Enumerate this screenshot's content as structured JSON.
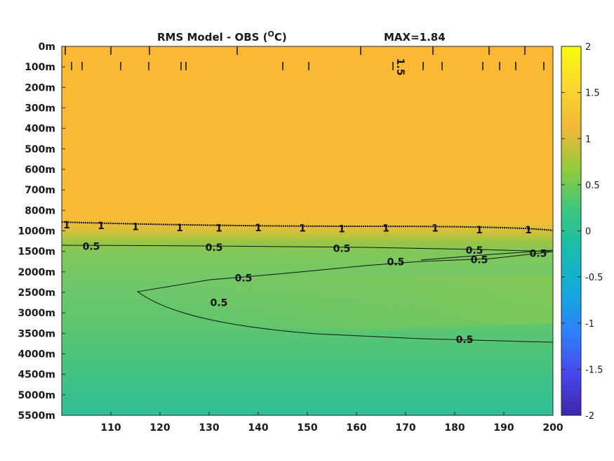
{
  "chart_data": {
    "type": "heatmap",
    "title_left": "RMS Model - OBS (",
    "title_sup": "O",
    "title_unit": "C)",
    "title_right": "MAX=1.84",
    "x_ticks": [
      110,
      120,
      130,
      140,
      150,
      160,
      170,
      180,
      190,
      200
    ],
    "xlim": [
      100,
      200
    ],
    "y_ticks": [
      "0m",
      "100m",
      "200m",
      "300m",
      "400m",
      "500m",
      "600m",
      "700m",
      "800m",
      "1000m",
      "1500m",
      "2000m",
      "2500m",
      "3000m",
      "3500m",
      "4000m",
      "4500m",
      "5000m",
      "5500m"
    ],
    "colorbar": {
      "ticks": [
        "2",
        "1.5",
        "1",
        "0.5",
        "0",
        "-0.5",
        "-1",
        "-1.5",
        "-2"
      ],
      "range": [
        -2,
        2
      ],
      "colors": [
        "#3e26a8",
        "#4746eb",
        "#2f7ffa",
        "#15a9dd",
        "#16bcb0",
        "#3bc67c",
        "#90cb3e",
        "#f0b736",
        "#fcd62f",
        "#f9fb0e"
      ]
    },
    "bands": [
      {
        "y_from": "0m",
        "y_to": "800m",
        "value": 1.35
      },
      {
        "y_from": "800m",
        "y_to": "1000m",
        "value": 1.1
      },
      {
        "y_from": "1500m",
        "y_to": "3500m",
        "value": 0.55
      },
      {
        "y_from": "3500m",
        "y_to": "5500m",
        "value": 0.35
      }
    ],
    "contour_labels": [
      {
        "text": "1.5",
        "x": 169,
        "y_index": 1.0
      },
      {
        "text": "1",
        "x": 101,
        "y_index": 8.7
      },
      {
        "text": "1",
        "x": 108,
        "y_index": 8.75
      },
      {
        "text": "1",
        "x": 115,
        "y_index": 8.8
      },
      {
        "text": "1",
        "x": 124,
        "y_index": 8.85
      },
      {
        "text": "1",
        "x": 132,
        "y_index": 8.87
      },
      {
        "text": "1",
        "x": 140,
        "y_index": 8.85
      },
      {
        "text": "1",
        "x": 149,
        "y_index": 8.87
      },
      {
        "text": "1",
        "x": 157,
        "y_index": 8.9
      },
      {
        "text": "1",
        "x": 166,
        "y_index": 8.87
      },
      {
        "text": "1",
        "x": 176,
        "y_index": 8.87
      },
      {
        "text": "1",
        "x": 185,
        "y_index": 8.95
      },
      {
        "text": "1",
        "x": 195,
        "y_index": 8.95
      },
      {
        "text": "0.5",
        "x": 106,
        "y_index": 9.75
      },
      {
        "text": "0.5",
        "x": 131,
        "y_index": 9.8
      },
      {
        "text": "0.5",
        "x": 157,
        "y_index": 9.85
      },
      {
        "text": "0.5",
        "x": 184,
        "y_index": 9.95
      },
      {
        "text": "0.5",
        "x": 197,
        "y_index": 10.1
      },
      {
        "text": "0.5",
        "x": 168,
        "y_index": 10.5
      },
      {
        "text": "0.5",
        "x": 185,
        "y_index": 10.4
      },
      {
        "text": "0.5",
        "x": 137,
        "y_index": 11.3
      },
      {
        "text": "0.5",
        "x": 132,
        "y_index": 12.5
      },
      {
        "text": "0.5",
        "x": 182,
        "y_index": 14.3
      }
    ]
  }
}
